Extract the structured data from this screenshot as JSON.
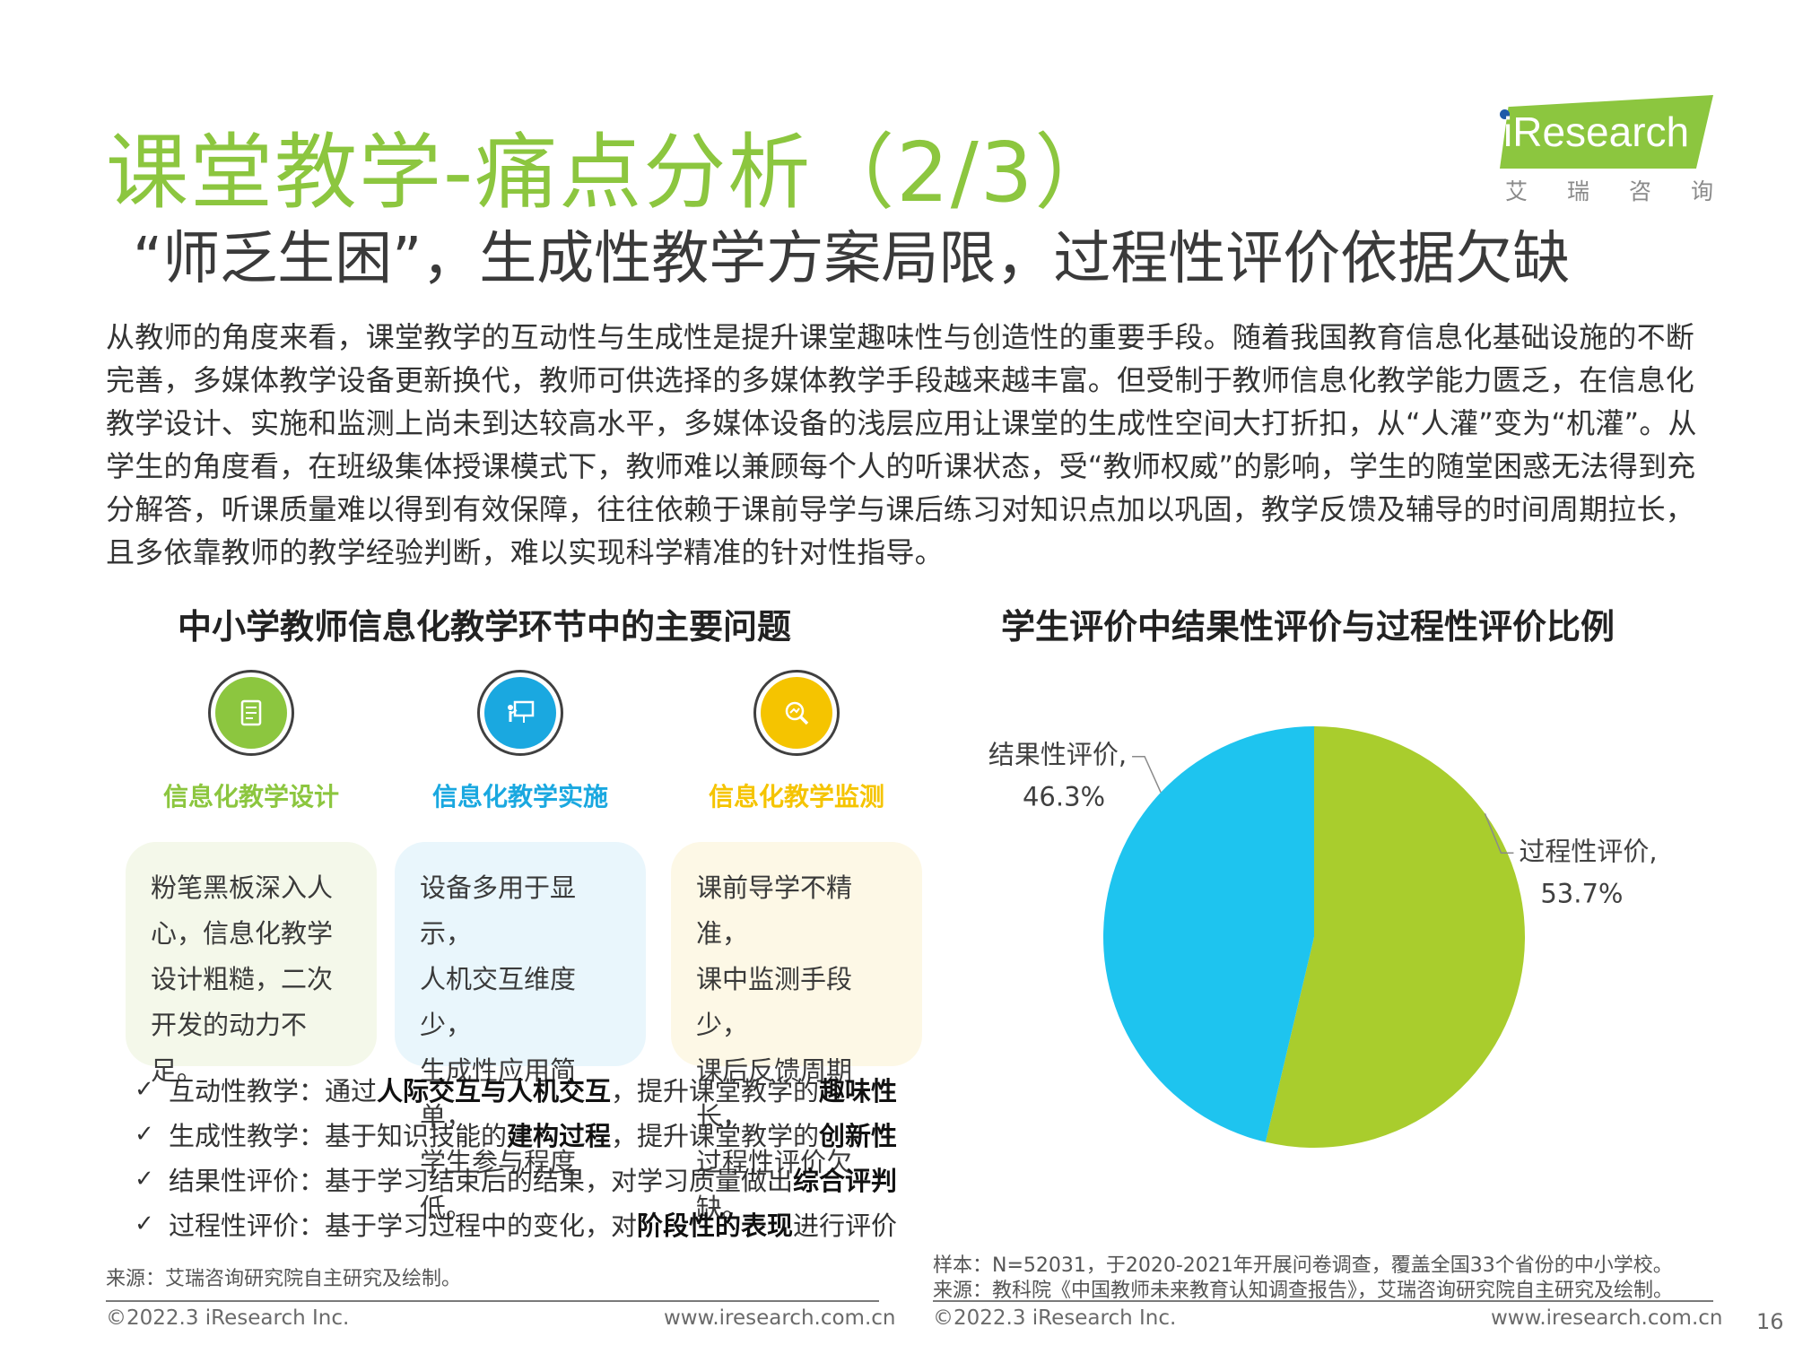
{
  "header": {
    "title": "课堂教学-痛点分析（2/3）",
    "subtitle": "“师乏生困”，生成性教学方案局限，过程性评价依据欠缺"
  },
  "logo": {
    "brand": "iResearch",
    "cn_chars": [
      "艾",
      "瑞",
      "咨",
      "询"
    ],
    "brand_color": "#8cc63f"
  },
  "paragraph": "从教师的角度来看，课堂教学的互动性与生成性是提升课堂趣味性与创造性的重要手段。随着我国教育信息化基础设施的不断完善，多媒体教学设备更新换代，教师可供选择的多媒体教学手段越来越丰富。但受制于教师信息化教学能力匮乏，在信息化教学设计、实施和监测上尚未到达较高水平，多媒体设备的浅层应用让课堂的生成性空间大打折扣，从“人灌”变为“机灌”。从学生的角度看，在班级集体授课模式下，教师难以兼顾每个人的听课状态，受“教师权威”的影响，学生的随堂困惑无法得到充分解答，听课质量难以得到有效保障，往往依赖于课前导学与课后练习对知识点加以巩固，教学反馈及辅导的时间周期拉长，且多依靠教师的教学经验判断，难以实现科学精准的针对性指导。",
  "left": {
    "section_title": "中小学教师信息化教学环节中的主要问题",
    "columns": [
      {
        "label": "信息化教学设计",
        "icon": "document-icon",
        "color": "#8cc63f",
        "card_bg": "#f4f8ea",
        "lines": [
          "粉笔黑板深入人",
          "心，信息化教学",
          "设计粗糙，二次",
          "开发的动力不足。"
        ]
      },
      {
        "label": "信息化教学实施",
        "icon": "presentation-icon",
        "color": "#1aa8e0",
        "card_bg": "#e9f6fc",
        "lines": [
          "设备多用于显示，",
          "人机交互维度少，",
          "生成性应用简单，",
          "学生参与程度低。"
        ]
      },
      {
        "label": "信息化教学监测",
        "icon": "magnifier-icon",
        "color": "#f5c400",
        "card_bg": "#fdf8e6",
        "lines": [
          "课前导学不精准，",
          "课中监测手段少，",
          "课后反馈周期长，",
          "过程性评价欠缺。"
        ]
      }
    ],
    "checklist": [
      {
        "pre": "互动性教学：通过",
        "b1": "人际交互与人机交互",
        "mid": "，提升课堂教学的",
        "b2": "趣味性",
        "post": ""
      },
      {
        "pre": "生成性教学：基于知识技能的",
        "b1": "建构过程",
        "mid": "，提升课堂教学的",
        "b2": "创新性",
        "post": ""
      },
      {
        "pre": "结果性评价：基于学习结束后的结果，对学习质量做出",
        "b1": "综合评判",
        "mid": "",
        "b2": "",
        "post": ""
      },
      {
        "pre": "过程性评价：基于学习过程中的变化，对",
        "b1": "阶段性的表现",
        "mid": "进行评价",
        "b2": "",
        "post": ""
      }
    ],
    "source": "来源：艾瑞咨询研究院自主研究及绘制。",
    "footer_left": "©2022.3 iResearch Inc.",
    "footer_right": "www.iresearch.com.cn"
  },
  "right": {
    "section_title": "学生评价中结果性评价与过程性评价比例",
    "sample": "样本：N=52031，于2020-2021年开展问卷调查，覆盖全国33个省份的中小学校。",
    "source": "来源：教科院《中国教师未来教育认知调查报告》，艾瑞咨询研究院自主研究及绘制。",
    "footer_left": "©2022.3 iResearch Inc.",
    "footer_right": "www.iresearch.com.cn"
  },
  "page_number": "16",
  "chart_data": {
    "type": "pie",
    "title": "学生评价中结果性评价与过程性评价比例",
    "slices": [
      {
        "name": "过程性评价",
        "label": "过程性评价,",
        "value": 53.7,
        "value_label": "53.7%",
        "color": "#a9cd2d"
      },
      {
        "name": "结果性评价",
        "label": "结果性评价,",
        "value": 46.3,
        "value_label": "46.3%",
        "color": "#1ec4ef"
      }
    ],
    "start": "12 o'clock, clockwise"
  }
}
